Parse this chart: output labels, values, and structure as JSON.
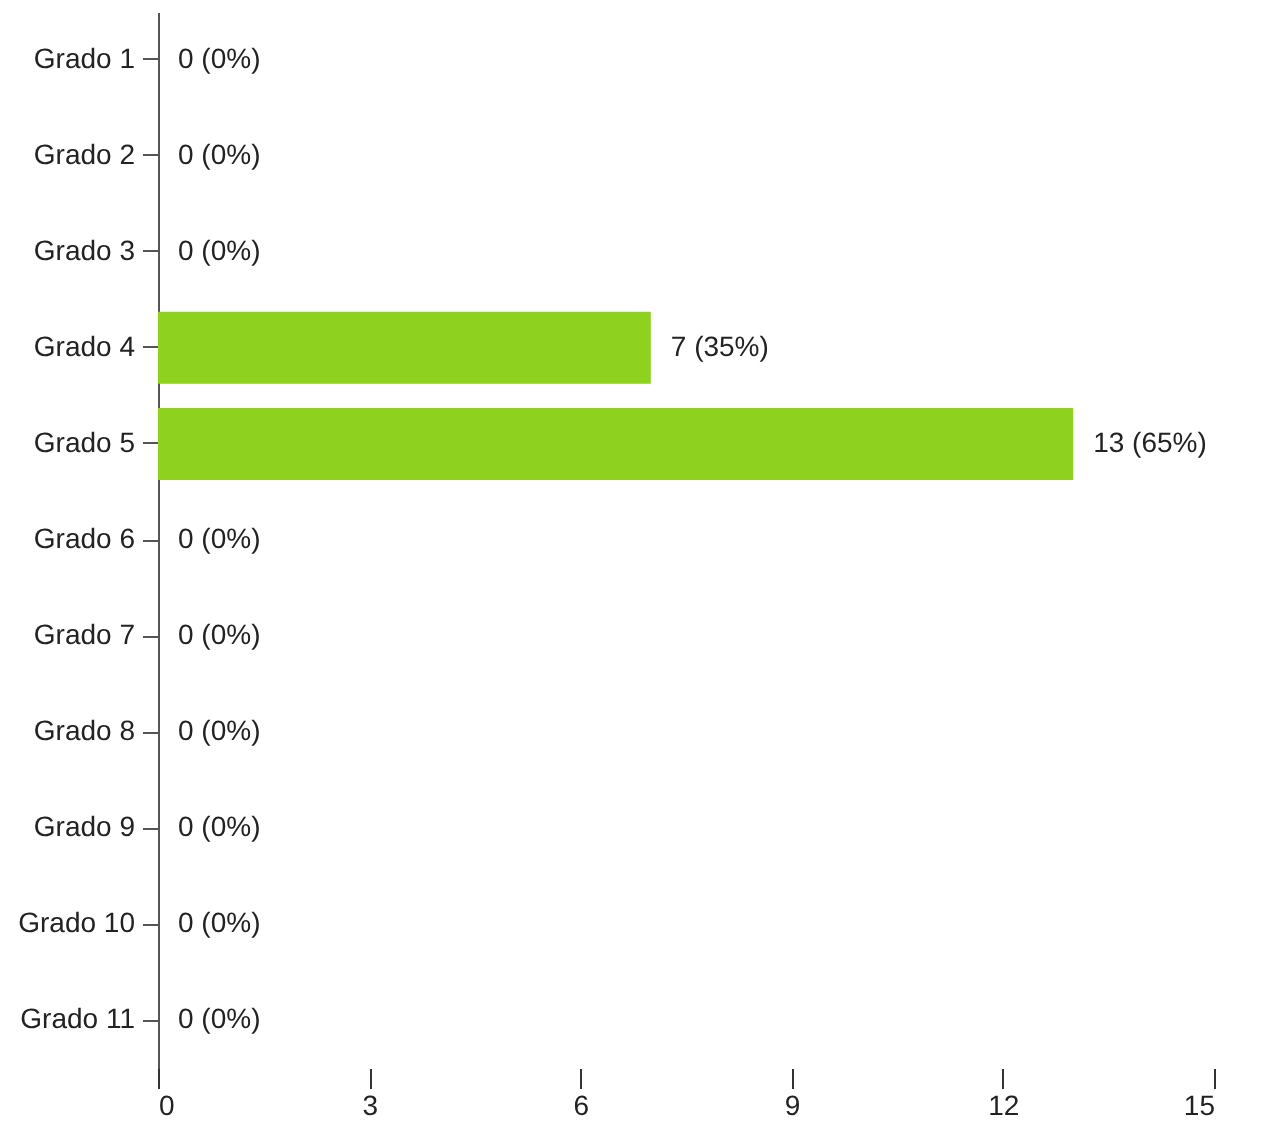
{
  "chart_data": {
    "type": "bar",
    "orientation": "horizontal",
    "categories": [
      "Grado 1",
      "Grado 2",
      "Grado 3",
      "Grado 4",
      "Grado 5",
      "Grado 6",
      "Grado 7",
      "Grado 8",
      "Grado 9",
      "Grado 10",
      "Grado 11"
    ],
    "values": [
      0,
      0,
      0,
      7,
      13,
      0,
      0,
      0,
      0,
      0,
      0
    ],
    "value_labels": [
      "0 (0%)",
      "0 (0%)",
      "0 (0%)",
      "7 (35%)",
      "13 (65%)",
      "0 (0%)",
      "0 (0%)",
      "0 (0%)",
      "0 (0%)",
      "0 (0%)",
      "0 (0%)"
    ],
    "color": "#8fd11f",
    "xlim": [
      0,
      15
    ],
    "xticks": [
      0,
      3,
      6,
      9,
      12,
      15
    ]
  }
}
